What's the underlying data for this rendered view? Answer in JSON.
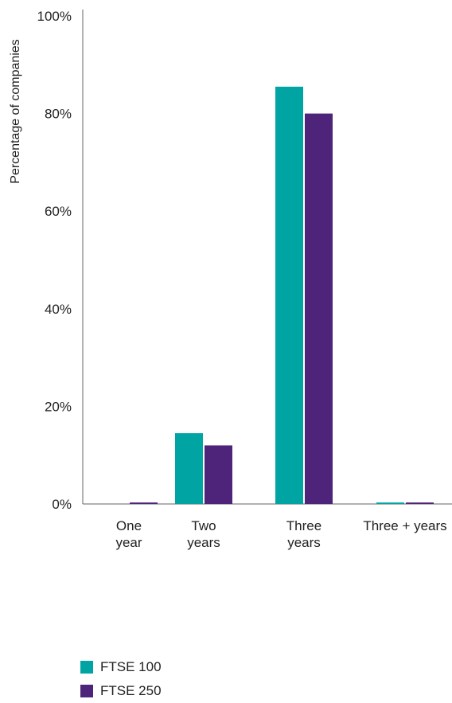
{
  "chart_data": {
    "type": "bar",
    "ylabel": "Percentage of companies",
    "xlabel": "",
    "ylim": [
      0,
      100
    ],
    "yticks": [
      {
        "value": 0,
        "label": "0%"
      },
      {
        "value": 20,
        "label": "20%"
      },
      {
        "value": 40,
        "label": "40%"
      },
      {
        "value": 60,
        "label": "60%"
      },
      {
        "value": 80,
        "label": "80%"
      },
      {
        "value": 100,
        "label": "100%"
      }
    ],
    "categories": [
      {
        "lines": [
          "One",
          "year"
        ]
      },
      {
        "lines": [
          "Two",
          "years"
        ]
      },
      {
        "lines": [
          "Three",
          "years"
        ]
      },
      {
        "lines": [
          "Three + years"
        ]
      }
    ],
    "series": [
      {
        "name": "FTSE 100",
        "color": "#00a5a3",
        "values": [
          0,
          14.5,
          85.5,
          0.3
        ]
      },
      {
        "name": "FTSE 250",
        "color": "#4e237a",
        "values": [
          0.3,
          12,
          80,
          0.3
        ]
      }
    ],
    "grid": false,
    "legend_position": "bottom-left"
  }
}
